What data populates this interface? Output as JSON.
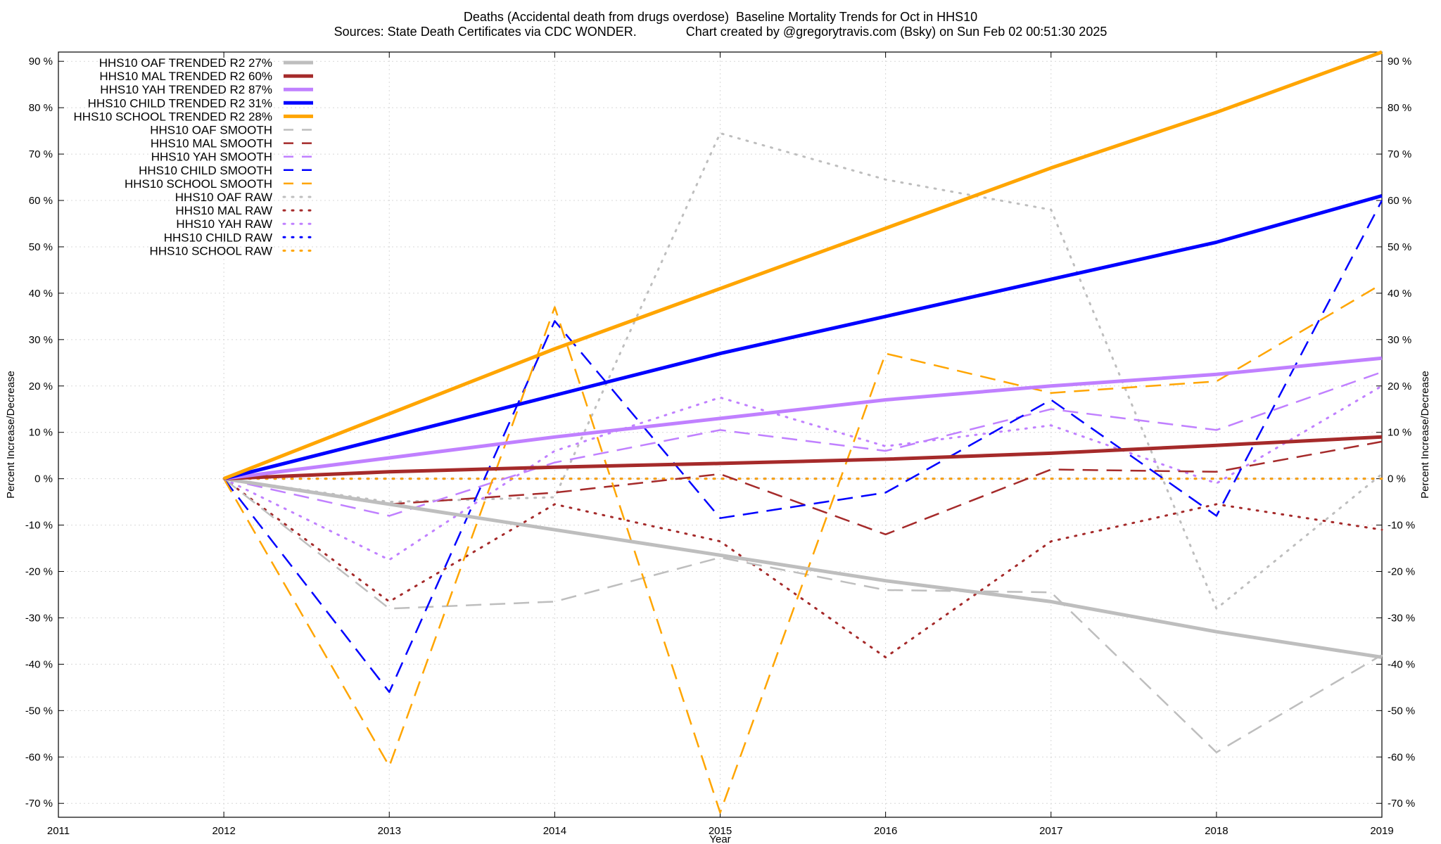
{
  "chart_data": {
    "type": "line",
    "title": "Deaths (Accidental death from drugs overdose)  Baseline Mortality Trends for Oct in HHS10",
    "subtitle": "Sources: State Death Certificates via CDC WONDER.              Chart created by @gregorytravis.com (Bsky) on Sun Feb 02 00:51:30 2025",
    "xlabel": "Year",
    "ylabel": "Percent Increase/Decrease",
    "y2label": "Percent Increase/Decrease",
    "xlim": [
      2011,
      2019
    ],
    "ylim": [
      -73,
      92
    ],
    "x_ticks": [
      "2011",
      "2012",
      "2013",
      "2014",
      "2015",
      "2016",
      "2017",
      "2018",
      "2019"
    ],
    "y_ticks": [
      "90 %",
      "80 %",
      "70 %",
      "60 %",
      "50 %",
      "40 %",
      "30 %",
      "20 %",
      "10 %",
      "0 %",
      "-10 %",
      "-20 %",
      "-30 %",
      "-40 %",
      "-50 %",
      "-60 %",
      "-70 %"
    ],
    "grid": true,
    "legend_position": "top-left",
    "colors": {
      "oaf": "#bebebe",
      "mal": "#a52a2a",
      "yah": "#c080ff",
      "child": "#0000ff",
      "school": "#ffa500"
    },
    "series": [
      {
        "name": "HHS10 OAF TRENDED R2  27%",
        "style": "trend",
        "color": "#bebebe",
        "x": [
          2012,
          2013,
          2014,
          2015,
          2016,
          2017,
          2018,
          2019
        ],
        "values": [
          0,
          -5.5,
          -11,
          -16.5,
          -22,
          -26.5,
          -33,
          -38.5
        ]
      },
      {
        "name": "HHS10 MAL TRENDED R2  60%",
        "style": "trend",
        "color": "#a52a2a",
        "x": [
          2012,
          2013,
          2014,
          2015,
          2016,
          2017,
          2018,
          2019
        ],
        "values": [
          0,
          1.5,
          2.5,
          3.3,
          4.2,
          5.5,
          7.2,
          9
        ]
      },
      {
        "name": "HHS10 YAH TRENDED R2  87%",
        "style": "trend",
        "color": "#c080ff",
        "x": [
          2012,
          2013,
          2014,
          2015,
          2016,
          2017,
          2018,
          2019
        ],
        "values": [
          0,
          4.5,
          9,
          13,
          17,
          20,
          22.5,
          26
        ]
      },
      {
        "name": "HHS10 CHILD TRENDED R2  31%",
        "style": "trend",
        "color": "#0000ff",
        "x": [
          2012,
          2013,
          2014,
          2015,
          2016,
          2017,
          2018,
          2019
        ],
        "values": [
          0,
          9,
          18,
          27,
          35,
          43,
          51,
          61
        ]
      },
      {
        "name": "HHS10 SCHOOL TRENDED R2  28%",
        "style": "trend",
        "color": "#ffa500",
        "x": [
          2012,
          2013,
          2014,
          2015,
          2016,
          2017,
          2018,
          2019
        ],
        "values": [
          0,
          14,
          28,
          41,
          54,
          67,
          79,
          92
        ]
      },
      {
        "name": "HHS10 OAF SMOOTH",
        "style": "smooth",
        "color": "#bebebe",
        "x": [
          2012,
          2013,
          2014,
          2015,
          2016,
          2017,
          2018,
          2019
        ],
        "values": [
          0,
          -28,
          -26.5,
          -17,
          -24,
          -24.5,
          -59,
          -38
        ]
      },
      {
        "name": "HHS10 MAL SMOOTH",
        "style": "smooth",
        "color": "#a52a2a",
        "x": [
          2012,
          2013,
          2014,
          2015,
          2016,
          2017,
          2018,
          2019
        ],
        "values": [
          0,
          -5.5,
          -3,
          1,
          -12,
          2,
          1.5,
          8
        ]
      },
      {
        "name": "HHS10 YAH SMOOTH",
        "style": "smooth",
        "color": "#c080ff",
        "x": [
          2012,
          2013,
          2014,
          2015,
          2016,
          2017,
          2018,
          2019
        ],
        "values": [
          0,
          -8,
          3.5,
          10.5,
          6,
          15,
          10.5,
          23
        ]
      },
      {
        "name": "HHS10 CHILD SMOOTH",
        "style": "smooth",
        "color": "#0000ff",
        "x": [
          2012,
          2013,
          2014,
          2015,
          2016,
          2017,
          2018,
          2019
        ],
        "values": [
          0,
          -46,
          34,
          -8.5,
          -3,
          17,
          -8,
          60
        ]
      },
      {
        "name": "HHS10 SCHOOL SMOOTH",
        "style": "smooth",
        "color": "#ffa500",
        "x": [
          2012,
          2013,
          2014,
          2015,
          2016,
          2017,
          2018,
          2019
        ],
        "values": [
          0,
          -62,
          37,
          -72,
          27,
          18.5,
          21,
          42
        ]
      },
      {
        "name": "HHS10 OAF RAW",
        "style": "raw",
        "color": "#bebebe",
        "x": [
          2012,
          2013,
          2014,
          2015,
          2016,
          2017,
          2018,
          2019
        ],
        "values": [
          0,
          -5,
          -4,
          74.5,
          64.5,
          58,
          -28,
          1
        ]
      },
      {
        "name": "HHS10 MAL RAW",
        "style": "raw",
        "color": "#a52a2a",
        "x": [
          2012,
          2013,
          2014,
          2015,
          2016,
          2017,
          2018,
          2019
        ],
        "values": [
          0,
          -26.5,
          -5.5,
          -13.5,
          -38.5,
          -13.5,
          -5.5,
          -11
        ]
      },
      {
        "name": "HHS10 YAH RAW",
        "style": "raw",
        "color": "#c080ff",
        "x": [
          2012,
          2013,
          2014,
          2015,
          2016,
          2017,
          2018,
          2019
        ],
        "values": [
          0,
          -17.5,
          6,
          17.5,
          7,
          11.5,
          -1,
          20
        ]
      },
      {
        "name": "HHS10 CHILD RAW",
        "style": "raw",
        "color": "#0000ff",
        "x": [
          2012,
          2013,
          2014,
          2015,
          2016,
          2017,
          2018,
          2019
        ],
        "values": [
          0,
          0,
          0,
          0,
          0,
          0,
          0,
          0
        ]
      },
      {
        "name": "HHS10 SCHOOL RAW",
        "style": "raw",
        "color": "#ffa500",
        "x": [
          2012,
          2013,
          2014,
          2015,
          2016,
          2017,
          2018,
          2019
        ],
        "values": [
          0,
          0,
          0,
          0,
          0,
          0,
          0,
          0
        ]
      }
    ]
  }
}
